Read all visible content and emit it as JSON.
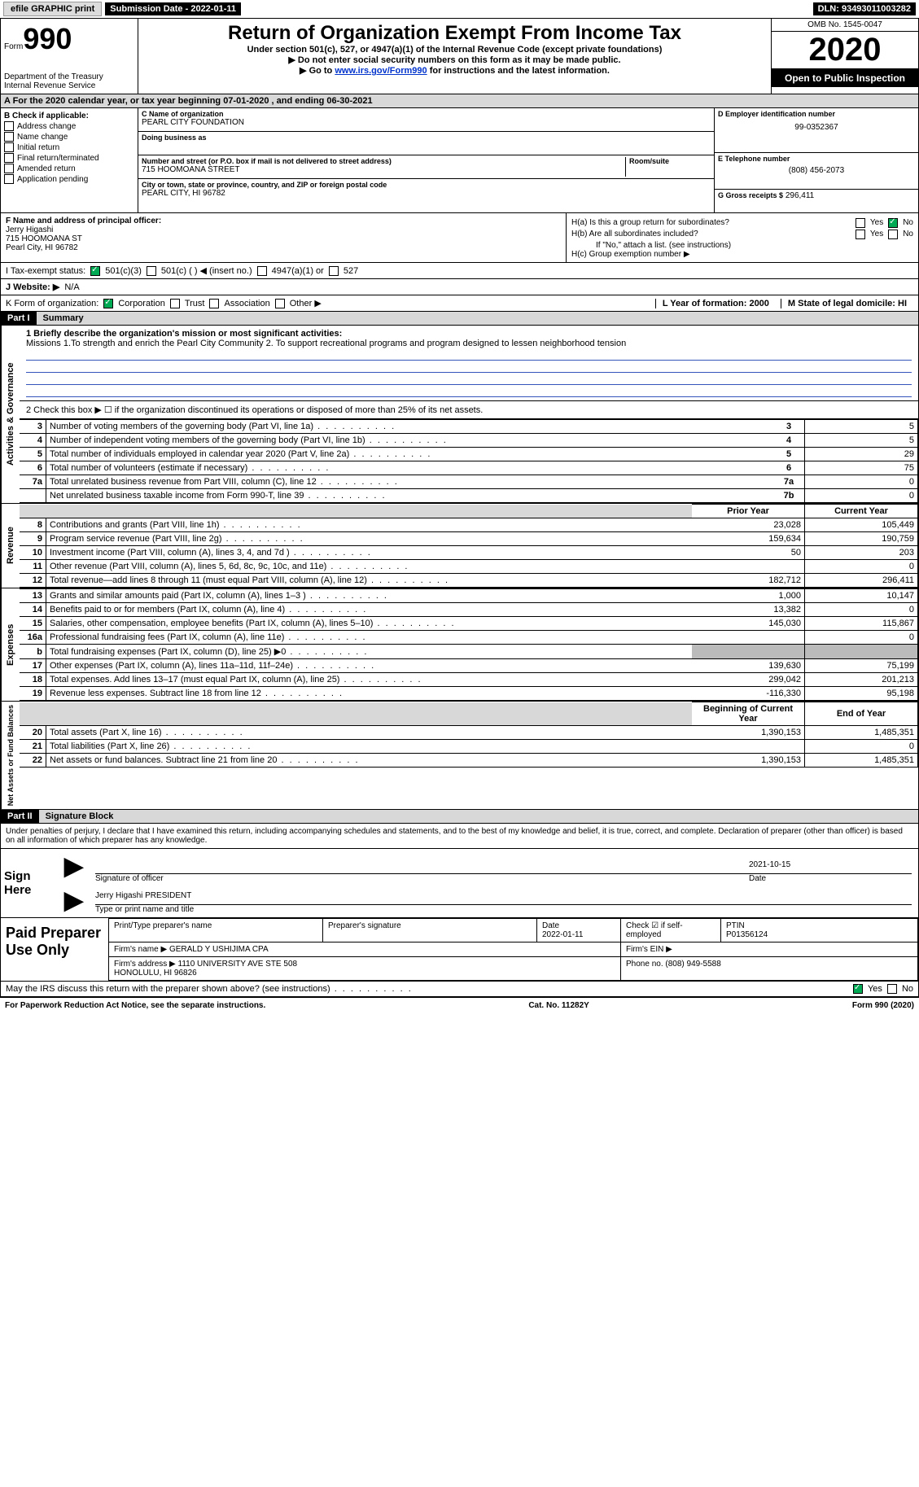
{
  "top": {
    "efile": "efile GRAPHIC print",
    "submission_label": "Submission Date - ",
    "submission_date": "2022-01-11",
    "dln_label": "DLN: ",
    "dln": "93493011003282"
  },
  "header": {
    "form_label": "Form",
    "form_no": "990",
    "dept": "Department of the Treasury\nInternal Revenue Service",
    "title": "Return of Organization Exempt From Income Tax",
    "subtitle": "Under section 501(c), 527, or 4947(a)(1) of the Internal Revenue Code (except private foundations)",
    "note1": "▶ Do not enter social security numbers on this form as it may be made public.",
    "note2_pre": "▶ Go to ",
    "note2_link": "www.irs.gov/Form990",
    "note2_post": " for instructions and the latest information.",
    "omb": "OMB No. 1545-0047",
    "year": "2020",
    "open": "Open to Public Inspection"
  },
  "row_a": "A For the 2020 calendar year, or tax year beginning 07-01-2020   , and ending 06-30-2021",
  "b": {
    "header": "B Check if applicable:",
    "items": [
      "Address change",
      "Name change",
      "Initial return",
      "Final return/terminated",
      "Amended return",
      "Application pending"
    ]
  },
  "c": {
    "name_label": "C Name of organization",
    "name": "PEARL CITY FOUNDATION",
    "dba_label": "Doing business as",
    "street_label": "Number and street (or P.O. box if mail is not delivered to street address)",
    "room_label": "Room/suite",
    "street": "715 HOOMOANA STREET",
    "city_label": "City or town, state or province, country, and ZIP or foreign postal code",
    "city": "PEARL CITY, HI  96782"
  },
  "d": {
    "label": "D Employer identification number",
    "value": "99-0352367"
  },
  "e": {
    "label": "E Telephone number",
    "value": "(808) 456-2073"
  },
  "g": {
    "label": "G Gross receipts $",
    "value": "296,411"
  },
  "f": {
    "label": "F  Name and address of principal officer:",
    "name": "Jerry Higashi",
    "addr1": "715 HOOMOANA ST",
    "addr2": "Pearl City, HI  96782"
  },
  "h": {
    "a": "H(a)  Is this a group return for subordinates?",
    "b": "H(b)  Are all subordinates included?",
    "b_note": "If \"No,\" attach a list. (see instructions)",
    "c": "H(c)  Group exemption number ▶",
    "yes": "Yes",
    "no": "No"
  },
  "i": {
    "label": "I   Tax-exempt status:",
    "opts": [
      "501(c)(3)",
      "501(c) (  ) ◀ (insert no.)",
      "4947(a)(1) or",
      "527"
    ]
  },
  "j": {
    "label": "J   Website: ▶",
    "value": "N/A"
  },
  "k": {
    "label": "K Form of organization:",
    "opts": [
      "Corporation",
      "Trust",
      "Association",
      "Other ▶"
    ]
  },
  "l": "L Year of formation: 2000",
  "m": "M State of legal domicile: HI",
  "part1": {
    "header": "Part I",
    "title": "Summary",
    "mission_label": "1  Briefly describe the organization's mission or most significant activities:",
    "mission": "Missions 1.To strength and enrich the Pearl City Community 2. To support recreational programs and program designed to lessen neighborhood tension",
    "line2": "2   Check this box ▶ ☐  if the organization discontinued its operations or disposed of more than 25% of its net assets.",
    "rows_gov": [
      {
        "n": "3",
        "d": "Number of voting members of the governing body (Part VI, line 1a)",
        "k": "3",
        "v": "5"
      },
      {
        "n": "4",
        "d": "Number of independent voting members of the governing body (Part VI, line 1b)",
        "k": "4",
        "v": "5"
      },
      {
        "n": "5",
        "d": "Total number of individuals employed in calendar year 2020 (Part V, line 2a)",
        "k": "5",
        "v": "29"
      },
      {
        "n": "6",
        "d": "Total number of volunteers (estimate if necessary)",
        "k": "6",
        "v": "75"
      },
      {
        "n": "7a",
        "d": "Total unrelated business revenue from Part VIII, column (C), line 12",
        "k": "7a",
        "v": "0"
      },
      {
        "n": "",
        "d": "Net unrelated business taxable income from Form 990-T, line 39",
        "k": "7b",
        "v": "0"
      }
    ],
    "col_prior": "Prior Year",
    "col_current": "Current Year",
    "revenue": [
      {
        "n": "8",
        "d": "Contributions and grants (Part VIII, line 1h)",
        "p": "23,028",
        "c": "105,449"
      },
      {
        "n": "9",
        "d": "Program service revenue (Part VIII, line 2g)",
        "p": "159,634",
        "c": "190,759"
      },
      {
        "n": "10",
        "d": "Investment income (Part VIII, column (A), lines 3, 4, and 7d )",
        "p": "50",
        "c": "203"
      },
      {
        "n": "11",
        "d": "Other revenue (Part VIII, column (A), lines 5, 6d, 8c, 9c, 10c, and 11e)",
        "p": "",
        "c": "0"
      },
      {
        "n": "12",
        "d": "Total revenue—add lines 8 through 11 (must equal Part VIII, column (A), line 12)",
        "p": "182,712",
        "c": "296,411"
      }
    ],
    "expenses": [
      {
        "n": "13",
        "d": "Grants and similar amounts paid (Part IX, column (A), lines 1–3 )",
        "p": "1,000",
        "c": "10,147"
      },
      {
        "n": "14",
        "d": "Benefits paid to or for members (Part IX, column (A), line 4)",
        "p": "13,382",
        "c": "0"
      },
      {
        "n": "15",
        "d": "Salaries, other compensation, employee benefits (Part IX, column (A), lines 5–10)",
        "p": "145,030",
        "c": "115,867"
      },
      {
        "n": "16a",
        "d": "Professional fundraising fees (Part IX, column (A), line 11e)",
        "p": "",
        "c": "0"
      },
      {
        "n": "b",
        "d": "Total fundraising expenses (Part IX, column (D), line 25) ▶0",
        "p": "GRAY",
        "c": "GRAY"
      },
      {
        "n": "17",
        "d": "Other expenses (Part IX, column (A), lines 11a–11d, 11f–24e)",
        "p": "139,630",
        "c": "75,199"
      },
      {
        "n": "18",
        "d": "Total expenses. Add lines 13–17 (must equal Part IX, column (A), line 25)",
        "p": "299,042",
        "c": "201,213"
      },
      {
        "n": "19",
        "d": "Revenue less expenses. Subtract line 18 from line 12",
        "p": "-116,330",
        "c": "95,198"
      }
    ],
    "col_begin": "Beginning of Current Year",
    "col_end": "End of Year",
    "netassets": [
      {
        "n": "20",
        "d": "Total assets (Part X, line 16)",
        "p": "1,390,153",
        "c": "1,485,351"
      },
      {
        "n": "21",
        "d": "Total liabilities (Part X, line 26)",
        "p": "",
        "c": "0"
      },
      {
        "n": "22",
        "d": "Net assets or fund balances. Subtract line 21 from line 20",
        "p": "1,390,153",
        "c": "1,485,351"
      }
    ],
    "vert_gov": "Activities & Governance",
    "vert_rev": "Revenue",
    "vert_exp": "Expenses",
    "vert_net": "Net Assets or Fund Balances"
  },
  "part2": {
    "header": "Part II",
    "title": "Signature Block",
    "decl": "Under penalties of perjury, I declare that I have examined this return, including accompanying schedules and statements, and to the best of my knowledge and belief, it is true, correct, and complete. Declaration of preparer (other than officer) is based on all information of which preparer has any knowledge.",
    "sign_here": "Sign Here",
    "sig_officer": "Signature of officer",
    "sig_date_label": "Date",
    "sig_date": "2021-10-15",
    "officer_name": "Jerry Higashi PRESIDENT",
    "officer_type": "Type or print name and title",
    "paid": "Paid Preparer Use Only",
    "prep_name_label": "Print/Type preparer's name",
    "prep_sig_label": "Preparer's signature",
    "prep_date_label": "Date",
    "prep_date": "2022-01-11",
    "check_self": "Check ☑ if self-employed",
    "ptin_label": "PTIN",
    "ptin": "P01356124",
    "firm_name_label": "Firm's name    ▶",
    "firm_name": "GERALD Y USHIJIMA CPA",
    "firm_ein": "Firm's EIN ▶",
    "firm_addr_label": "Firm's address ▶",
    "firm_addr": "1110 UNIVERSITY AVE STE 508\nHONOLULU, HI  96826",
    "firm_phone_label": "Phone no.",
    "firm_phone": "(808) 949-5588",
    "discuss": "May the IRS discuss this return with the preparer shown above? (see instructions)",
    "yes": "Yes",
    "no": "No"
  },
  "footer": {
    "left": "For Paperwork Reduction Act Notice, see the separate instructions.",
    "mid": "Cat. No. 11282Y",
    "right": "Form 990 (2020)"
  }
}
